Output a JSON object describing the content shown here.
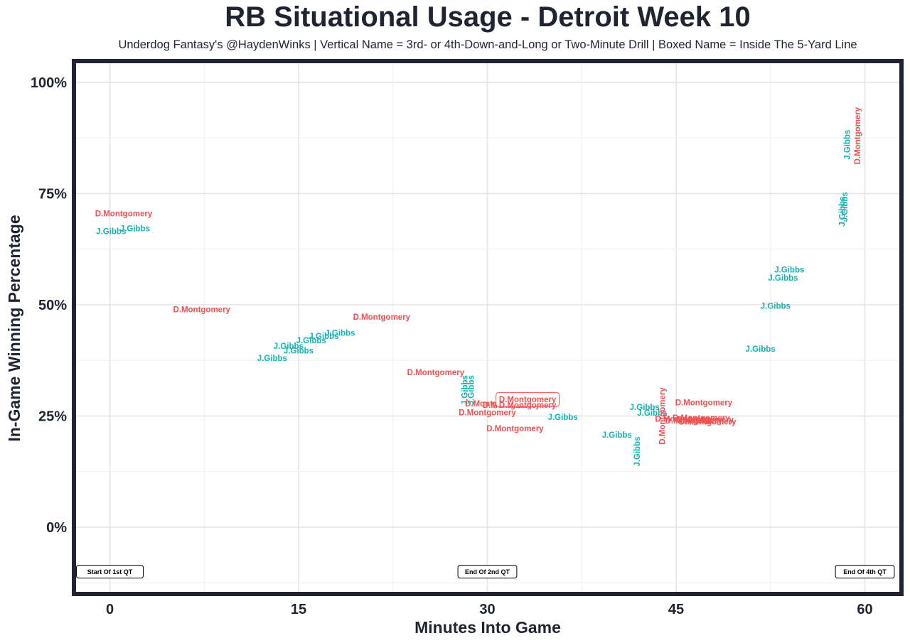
{
  "chart_data": {
    "type": "scatter",
    "title": "RB Situational Usage - Detroit Week 10",
    "subtitle": "Underdog Fantasy's @HaydenWinks | Vertical Name = 3rd- or 4th-Down-and-Long or Two-Minute Drill | Boxed Name = Inside The 5-Yard Line",
    "xlabel": "Minutes Into Game",
    "ylabel": "In-Game Winning Percentage",
    "xlim": [
      -3,
      63
    ],
    "ylim": [
      -15,
      105
    ],
    "x_ticks": [
      0,
      15,
      30,
      45,
      60
    ],
    "x_tick_labels": [
      "0",
      "15",
      "30",
      "45",
      "60"
    ],
    "y_ticks": [
      0,
      25,
      50,
      75,
      100
    ],
    "y_tick_labels": [
      "0%",
      "25%",
      "50%",
      "75%",
      "100%"
    ],
    "grid": true,
    "colors": {
      "D.Montgomery": "#f05050",
      "J.Gibbs": "#14b3b3"
    },
    "annotations": [
      {
        "text": "Start Of 1st QT",
        "x": 0,
        "y": -10
      },
      {
        "text": "End Of 2nd QT",
        "x": 30,
        "y": -10
      },
      {
        "text": "End Of 4th QT",
        "x": 60,
        "y": -10
      }
    ],
    "points": [
      {
        "player": "D.Montgomery",
        "x": 1.1,
        "y": 70.5
      },
      {
        "player": "J.Gibbs",
        "x": 0.1,
        "y": 66.5
      },
      {
        "player": "J.Gibbs",
        "x": 2.0,
        "y": 67.2
      },
      {
        "player": "D.Montgomery",
        "x": 7.3,
        "y": 49.0
      },
      {
        "player": "J.Gibbs",
        "x": 12.9,
        "y": 38.0
      },
      {
        "player": "J.Gibbs",
        "x": 14.2,
        "y": 40.7
      },
      {
        "player": "J.Gibbs",
        "x": 15.0,
        "y": 39.7
      },
      {
        "player": "J.Gibbs",
        "x": 16.0,
        "y": 42.0
      },
      {
        "player": "J.Gibbs",
        "x": 17.0,
        "y": 43.0
      },
      {
        "player": "J.Gibbs",
        "x": 18.3,
        "y": 43.7
      },
      {
        "player": "D.Montgomery",
        "x": 21.6,
        "y": 47.3
      },
      {
        "player": "D.Montgomery",
        "x": 25.9,
        "y": 34.8
      },
      {
        "player": "J.Gibbs",
        "x": 28.2,
        "y": 30.8,
        "vertical": true
      },
      {
        "player": "J.Gibbs",
        "x": 28.7,
        "y": 30.8,
        "vertical": true
      },
      {
        "player": "D.Montgomery",
        "x": 30.5,
        "y": 27.8
      },
      {
        "player": "D.Montgomery",
        "x": 30.0,
        "y": 25.8
      },
      {
        "player": "D.Montgomery",
        "x": 31.9,
        "y": 27.5
      },
      {
        "player": "D.Montgomery",
        "x": 33.2,
        "y": 28.7,
        "boxed": true
      },
      {
        "player": "D.Montgomery",
        "x": 33.2,
        "y": 27.5
      },
      {
        "player": "D.Montgomery",
        "x": 32.2,
        "y": 22.2
      },
      {
        "player": "J.Gibbs",
        "x": 36.0,
        "y": 24.8
      },
      {
        "player": "J.Gibbs",
        "x": 40.3,
        "y": 20.8
      },
      {
        "player": "J.Gibbs",
        "x": 41.9,
        "y": 17.0,
        "vertical": true
      },
      {
        "player": "J.Gibbs",
        "x": 42.5,
        "y": 27.0
      },
      {
        "player": "J.Gibbs",
        "x": 43.1,
        "y": 25.7
      },
      {
        "player": "D.Montgomery",
        "x": 43.9,
        "y": 25.0,
        "vertical": true
      },
      {
        "player": "D.Montgomery",
        "x": 45.6,
        "y": 24.4
      },
      {
        "player": "D.Montgomery",
        "x": 46.4,
        "y": 24.0
      },
      {
        "player": "D.Montgomery",
        "x": 47.0,
        "y": 24.6
      },
      {
        "player": "D.Montgomery",
        "x": 47.3,
        "y": 24.2
      },
      {
        "player": "D.Montgomery",
        "x": 47.5,
        "y": 23.7
      },
      {
        "player": "D.Montgomery",
        "x": 47.2,
        "y": 28.0
      },
      {
        "player": "J.Gibbs",
        "x": 51.7,
        "y": 40.1
      },
      {
        "player": "J.Gibbs",
        "x": 52.9,
        "y": 49.8
      },
      {
        "player": "J.Gibbs",
        "x": 53.5,
        "y": 56.1
      },
      {
        "player": "J.Gibbs",
        "x": 54.0,
        "y": 57.9
      },
      {
        "player": "J.Gibbs",
        "x": 58.2,
        "y": 71.0,
        "vertical": true
      },
      {
        "player": "J.Gibbs",
        "x": 58.4,
        "y": 72.0,
        "vertical": true
      },
      {
        "player": "J.Gibbs",
        "x": 58.6,
        "y": 86.0,
        "vertical": true
      },
      {
        "player": "D.Montgomery",
        "x": 59.4,
        "y": 88.0,
        "vertical": true
      }
    ]
  }
}
